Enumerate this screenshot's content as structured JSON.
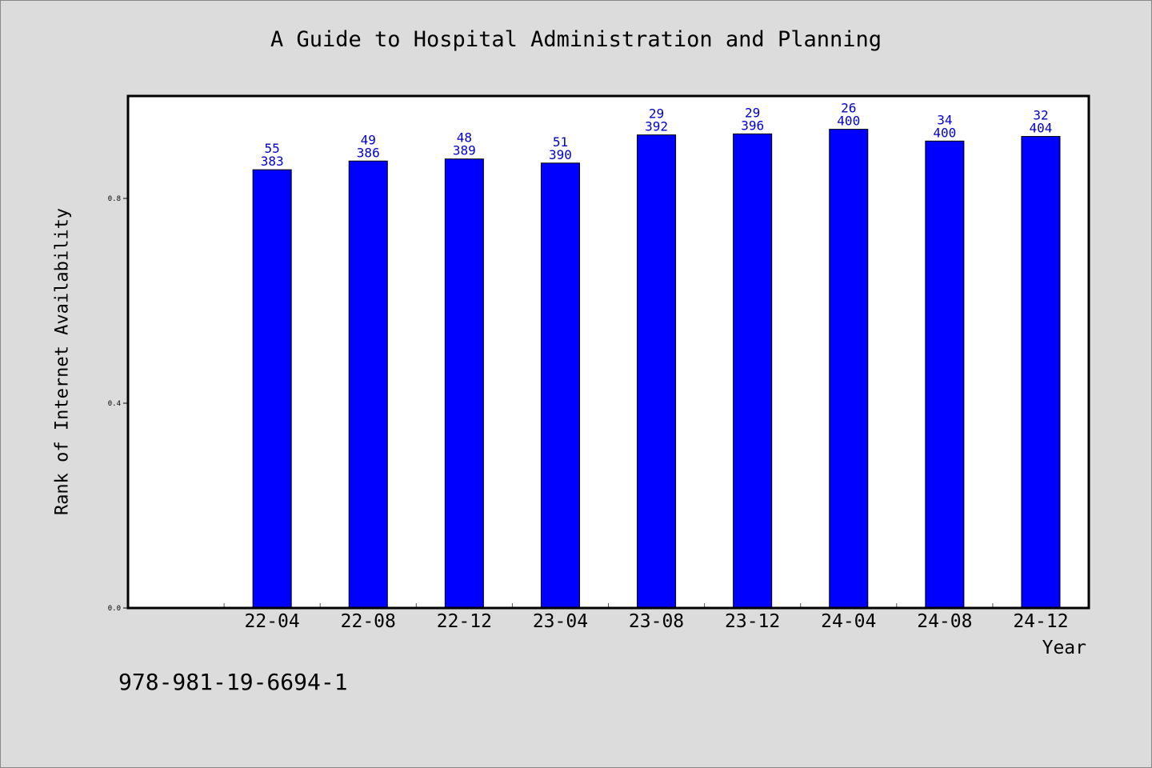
{
  "chart_data": {
    "type": "bar",
    "title": "A Guide to Hospital Administration and Planning",
    "xlabel": "Year",
    "ylabel": "Rank of Internet Availability",
    "ylim": [
      0,
      1.0
    ],
    "yticks": [
      "0.0",
      "0.4",
      "0.8"
    ],
    "categories": [
      "22-04",
      "22-08",
      "22-12",
      "23-04",
      "23-08",
      "23-12",
      "24-04",
      "24-08",
      "24-12"
    ],
    "values": [
      0.856,
      0.873,
      0.877,
      0.869,
      0.924,
      0.926,
      0.935,
      0.912,
      0.921
    ],
    "rank_labels": [
      "55",
      "49",
      "48",
      "51",
      "29",
      "29",
      "26",
      "34",
      "32"
    ],
    "total_labels": [
      "383",
      "386",
      "389",
      "390",
      "392",
      "396",
      "400",
      "400",
      "404"
    ],
    "grid": false,
    "colors": {
      "bar": "#0000ff",
      "value_label": "#0000cc",
      "plot_bg": "#ffffff",
      "page_bg": "#dcdcdc"
    }
  },
  "footer": {
    "isbn": "978-981-19-6694-1"
  }
}
